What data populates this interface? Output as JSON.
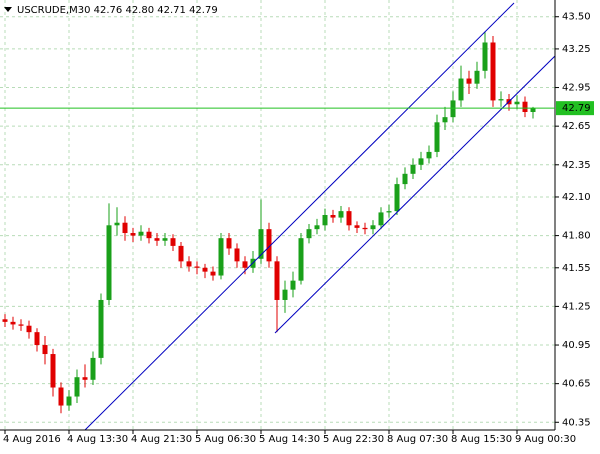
{
  "chart_data": {
    "type": "candlestick",
    "title": "USCRUDE,M30  42.76 42.80 42.71 42.79",
    "open": [
      41.15,
      41.13,
      41.11,
      41.1,
      41.05,
      40.95,
      40.88,
      40.62,
      40.48,
      40.55,
      40.7,
      40.68,
      40.85,
      41.3,
      41.88,
      41.9,
      41.82,
      41.8,
      41.83,
      41.78,
      41.76,
      41.78,
      41.72,
      41.6,
      41.56,
      41.55,
      41.52,
      41.49,
      41.78,
      41.7,
      41.6,
      41.55,
      41.62,
      41.85,
      41.6,
      41.3,
      41.38,
      41.45,
      41.78,
      41.85,
      41.88,
      41.96,
      41.94,
      41.99,
      41.88,
      41.86,
      41.85,
      41.88,
      41.98,
      41.99,
      42.2,
      42.28,
      42.35,
      42.4,
      42.45,
      42.68,
      42.72,
      42.85,
      43.02,
      42.98,
      43.08,
      43.3,
      42.85,
      42.86,
      42.82,
      42.84,
      42.76
    ],
    "high": [
      41.19,
      41.17,
      41.15,
      41.14,
      41.08,
      41.02,
      40.92,
      40.66,
      40.6,
      40.76,
      40.8,
      40.9,
      41.35,
      42.05,
      42.02,
      41.95,
      41.86,
      41.88,
      41.86,
      41.82,
      41.82,
      41.81,
      41.75,
      41.64,
      41.6,
      41.58,
      41.56,
      41.82,
      41.82,
      41.74,
      41.64,
      41.68,
      42.08,
      41.9,
      41.64,
      41.45,
      41.52,
      41.82,
      41.89,
      41.93,
      42.01,
      42.0,
      42.03,
      42.02,
      41.91,
      41.9,
      41.92,
      42.02,
      42.04,
      42.25,
      42.33,
      42.4,
      42.45,
      42.5,
      42.74,
      42.8,
      42.92,
      43.12,
      43.08,
      43.15,
      43.38,
      43.35,
      42.92,
      42.9,
      42.89,
      42.88,
      42.8
    ],
    "low": [
      41.09,
      41.07,
      41.06,
      41.0,
      40.9,
      40.8,
      40.55,
      40.42,
      40.44,
      40.5,
      40.62,
      40.64,
      40.8,
      41.26,
      41.8,
      41.76,
      41.75,
      41.76,
      41.74,
      41.72,
      41.72,
      41.68,
      41.55,
      41.52,
      41.5,
      41.47,
      41.45,
      41.46,
      41.65,
      41.55,
      41.5,
      41.51,
      41.58,
      41.55,
      41.05,
      41.2,
      41.32,
      41.42,
      41.74,
      41.81,
      41.84,
      41.9,
      41.9,
      41.84,
      41.82,
      41.81,
      41.81,
      41.85,
      41.94,
      41.96,
      42.16,
      42.24,
      42.31,
      42.36,
      42.41,
      42.62,
      42.68,
      42.8,
      42.9,
      42.94,
      43.02,
      42.8,
      42.8,
      42.77,
      42.78,
      42.72,
      42.71
    ],
    "close": [
      41.13,
      41.11,
      41.1,
      41.05,
      40.95,
      40.88,
      40.62,
      40.48,
      40.55,
      40.7,
      40.68,
      40.85,
      41.3,
      41.88,
      41.9,
      41.82,
      41.8,
      41.83,
      41.78,
      41.76,
      41.78,
      41.72,
      41.6,
      41.56,
      41.55,
      41.52,
      41.49,
      41.78,
      41.7,
      41.6,
      41.55,
      41.62,
      41.85,
      41.6,
      41.3,
      41.38,
      41.45,
      41.78,
      41.85,
      41.88,
      41.96,
      41.94,
      41.99,
      41.88,
      41.86,
      41.85,
      41.88,
      41.98,
      41.99,
      42.2,
      42.28,
      42.35,
      42.4,
      42.45,
      42.68,
      42.72,
      42.85,
      43.02,
      42.98,
      43.08,
      43.3,
      42.85,
      42.86,
      42.82,
      42.84,
      42.76,
      42.79
    ],
    "up_color": "#1aa01a",
    "down_color": "#e00000",
    "ylim": [
      40.29,
      43.63
    ],
    "yticks": [
      {
        "value": 43.5,
        "label": "43.50"
      },
      {
        "value": 43.25,
        "label": "43.25"
      },
      {
        "value": 42.95,
        "label": "42.95"
      },
      {
        "value": 42.65,
        "label": "42.65"
      },
      {
        "value": 42.35,
        "label": "42.35"
      },
      {
        "value": 42.1,
        "label": "42.10"
      },
      {
        "value": 41.8,
        "label": "41.80"
      },
      {
        "value": 41.55,
        "label": "41.55"
      },
      {
        "value": 41.25,
        "label": "41.25"
      },
      {
        "value": 40.95,
        "label": "40.95"
      },
      {
        "value": 40.65,
        "label": "40.65"
      },
      {
        "value": 40.35,
        "label": "40.35"
      }
    ],
    "xticks": [
      {
        "value": 0,
        "label": "4 Aug 2016"
      },
      {
        "value": 8,
        "label": "4 Aug 13:30"
      },
      {
        "value": 16,
        "label": "4 Aug 21:30"
      },
      {
        "value": 24,
        "label": "5 Aug 06:30"
      },
      {
        "value": 32,
        "label": "5 Aug 14:30"
      },
      {
        "value": 40,
        "label": "5 Aug 22:30"
      },
      {
        "value": 48,
        "label": "8 Aug 07:30"
      },
      {
        "value": 56,
        "label": "8 Aug 15:30"
      },
      {
        "value": 64,
        "label": "9 Aug 00:30"
      }
    ],
    "last_price": 42.79,
    "last_price_color": "#22c022",
    "grid": true
  }
}
